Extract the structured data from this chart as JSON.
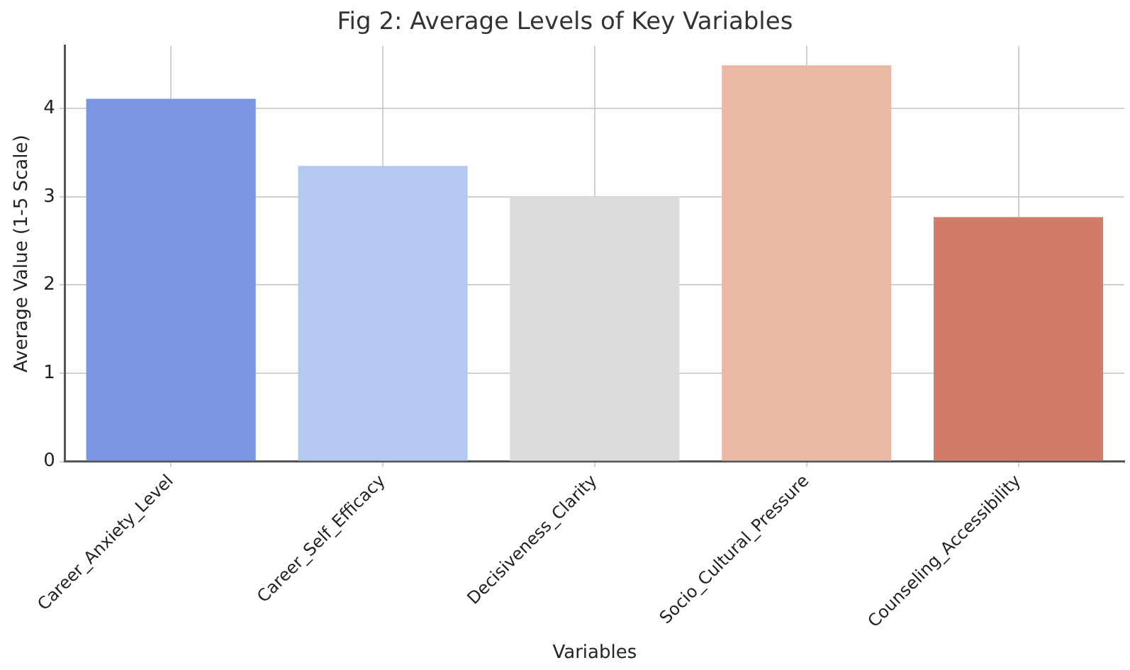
{
  "chart_data": {
    "type": "bar",
    "title": "Fig 2: Average Levels of Key Variables",
    "xlabel": "Variables",
    "ylabel": "Average Value (1-5 Scale)",
    "categories": [
      "Career_Anxiety_Level",
      "Career_Self_Efficacy",
      "Decisiveness_Clarity",
      "Socio_Cultural_Pressure",
      "Counseling_Accessibility"
    ],
    "values": [
      4.11,
      3.35,
      3.0,
      4.49,
      2.77
    ],
    "colors": [
      "#7b96e0",
      "#b4c8f0",
      "#dcdcdc",
      "#eab8a5",
      "#d17c68"
    ],
    "ylim": [
      0,
      4.71
    ],
    "yticks": [
      0,
      1,
      2,
      3,
      4
    ],
    "grid": true
  }
}
